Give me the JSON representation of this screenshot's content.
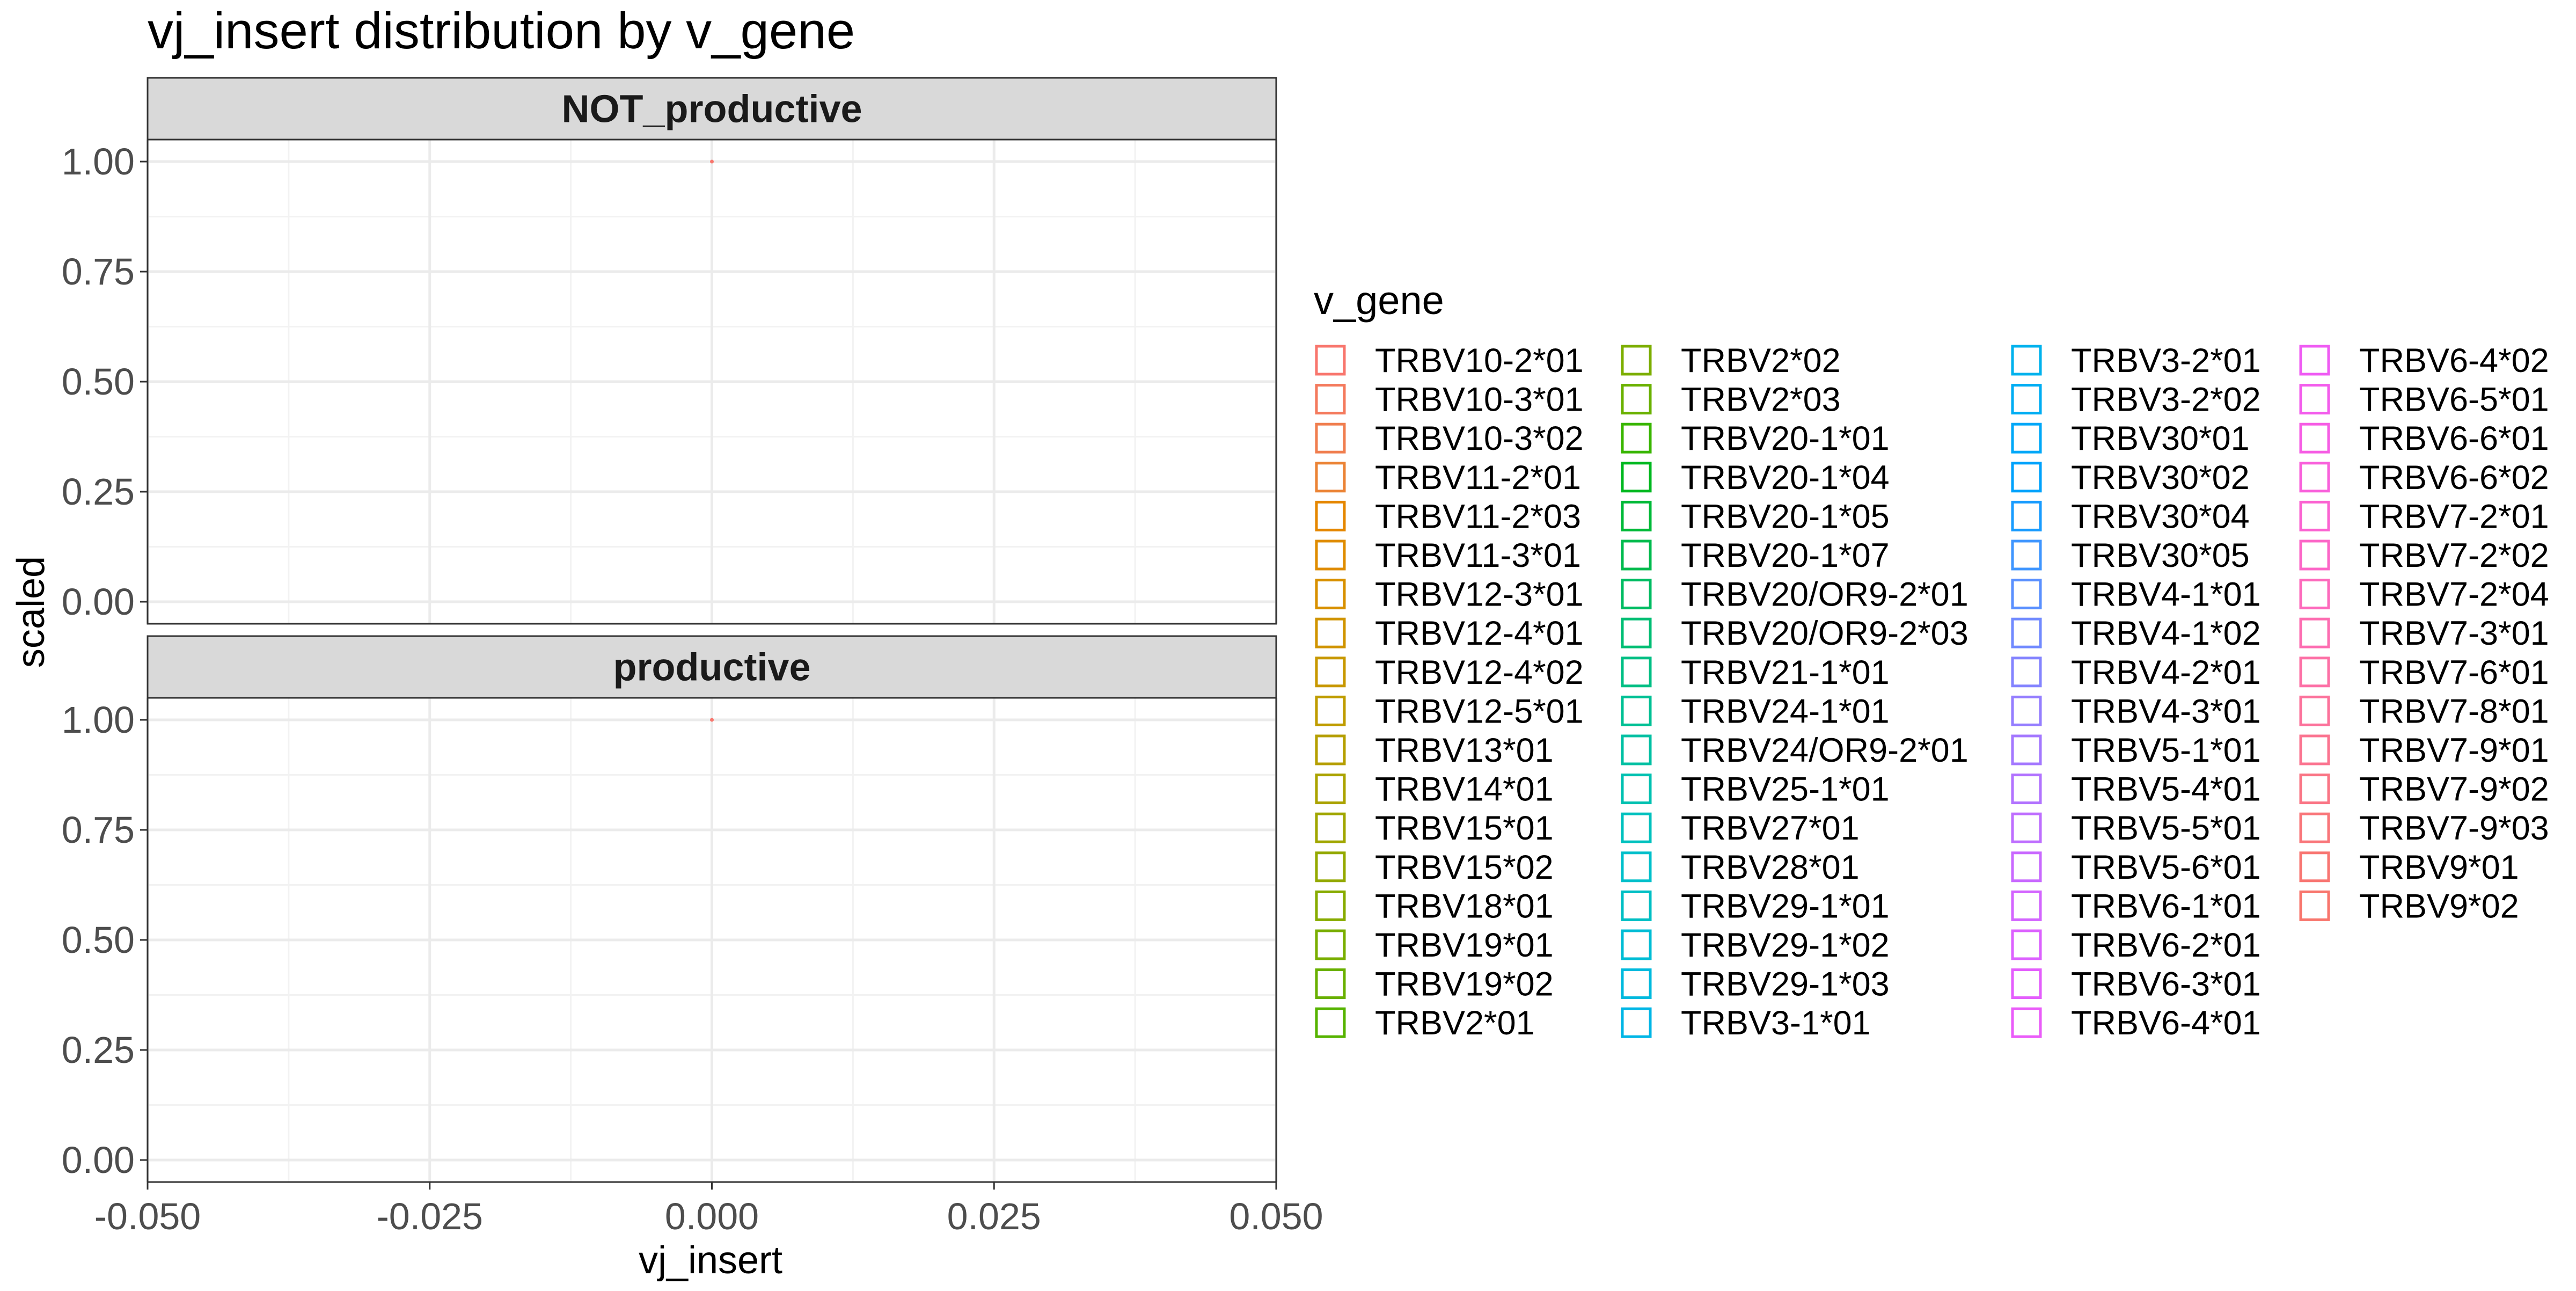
{
  "chart_data": {
    "type": "density",
    "title": "vj_insert distribution by v_gene",
    "xlabel": "vj_insert",
    "ylabel": "scaled",
    "xlim": [
      -0.05,
      0.05
    ],
    "ylim": [
      0,
      1
    ],
    "x_ticks": [
      "-0.050",
      "-0.025",
      "0.000",
      "0.025",
      "0.050"
    ],
    "x_tick_values": [
      -0.05,
      -0.025,
      0.0,
      0.025,
      0.05
    ],
    "y_ticks": [
      "0.00",
      "0.25",
      "0.50",
      "0.75",
      "1.00"
    ],
    "y_tick_values": [
      0,
      0.25,
      0.5,
      0.75,
      1.0
    ],
    "grid": true,
    "legend_position": "right",
    "legend_title": "v_gene",
    "legend_columns": 4,
    "facets": [
      {
        "label": "NOT_productive",
        "marks": [
          {
            "x": 0.0,
            "y": 1.0,
            "color": "#F8766D"
          }
        ]
      },
      {
        "label": "productive",
        "marks": [
          {
            "x": 0.0,
            "y": 1.0,
            "color": "#F8766D"
          }
        ]
      }
    ],
    "legend": [
      {
        "label": "TRBV10-2*01",
        "color": "#F8766D"
      },
      {
        "label": "TRBV10-3*01",
        "color": "#F47A5D"
      },
      {
        "label": "TRBV10-3*02",
        "color": "#F07E4F"
      },
      {
        "label": "TRBV11-2*01",
        "color": "#EB8335"
      },
      {
        "label": "TRBV11-2*03",
        "color": "#E58700"
      },
      {
        "label": "TRBV11-3*01",
        "color": "#DF8C00"
      },
      {
        "label": "TRBV12-3*01",
        "color": "#D89000"
      },
      {
        "label": "TRBV12-4*01",
        "color": "#D09400"
      },
      {
        "label": "TRBV12-4*02",
        "color": "#C89800"
      },
      {
        "label": "TRBV12-5*01",
        "color": "#BF9C00"
      },
      {
        "label": "TRBV13*01",
        "color": "#B59F00"
      },
      {
        "label": "TRBV14*01",
        "color": "#ABA300"
      },
      {
        "label": "TRBV15*01",
        "color": "#A0A600"
      },
      {
        "label": "TRBV15*02",
        "color": "#94A900"
      },
      {
        "label": "TRBV18*01",
        "color": "#87AB00"
      },
      {
        "label": "TRBV19*01",
        "color": "#79AE00"
      },
      {
        "label": "TRBV19*02",
        "color": "#69B000"
      },
      {
        "label": "TRBV2*01",
        "color": "#56B300"
      },
      {
        "label": "TRBV2*02",
        "color": "#7CAE00"
      },
      {
        "label": "TRBV2*03",
        "color": "#6AB100"
      },
      {
        "label": "TRBV20-1*01",
        "color": "#39B600"
      },
      {
        "label": "TRBV20-1*04",
        "color": "#00B81F"
      },
      {
        "label": "TRBV20-1*05",
        "color": "#00BA38"
      },
      {
        "label": "TRBV20-1*07",
        "color": "#00BB4E"
      },
      {
        "label": "TRBV20/OR9-2*01",
        "color": "#00BC62"
      },
      {
        "label": "TRBV20/OR9-2*03",
        "color": "#00BE74"
      },
      {
        "label": "TRBV21-1*01",
        "color": "#00BF84"
      },
      {
        "label": "TRBV24-1*01",
        "color": "#00C094"
      },
      {
        "label": "TRBV24/OR9-2*01",
        "color": "#00C0A3"
      },
      {
        "label": "TRBV25-1*01",
        "color": "#00C1B1"
      },
      {
        "label": "TRBV27*01",
        "color": "#00C1BE"
      },
      {
        "label": "TRBV28*01",
        "color": "#00C0CB"
      },
      {
        "label": "TRBV29-1*01",
        "color": "#00BFC4"
      },
      {
        "label": "TRBV29-1*02",
        "color": "#00BDD5"
      },
      {
        "label": "TRBV29-1*03",
        "color": "#00BADE"
      },
      {
        "label": "TRBV3-1*01",
        "color": "#00B6E6"
      },
      {
        "label": "TRBV3-2*01",
        "color": "#00B2ED"
      },
      {
        "label": "TRBV3-2*02",
        "color": "#00ADF3"
      },
      {
        "label": "TRBV30*01",
        "color": "#00A8F8"
      },
      {
        "label": "TRBV30*02",
        "color": "#00A2FC"
      },
      {
        "label": "TRBV30*04",
        "color": "#199CFF"
      },
      {
        "label": "TRBV30*05",
        "color": "#3F96FF"
      },
      {
        "label": "TRBV4-1*01",
        "color": "#5A90FF"
      },
      {
        "label": "TRBV4-1*02",
        "color": "#718AFF"
      },
      {
        "label": "TRBV4-2*01",
        "color": "#8484FF"
      },
      {
        "label": "TRBV4-3*01",
        "color": "#957EFF"
      },
      {
        "label": "TRBV5-1*01",
        "color": "#A478FF"
      },
      {
        "label": "TRBV5-4*01",
        "color": "#B273FF"
      },
      {
        "label": "TRBV5-5*01",
        "color": "#BE6EFF"
      },
      {
        "label": "TRBV5-6*01",
        "color": "#C969FF"
      },
      {
        "label": "TRBV6-1*01",
        "color": "#D365FF"
      },
      {
        "label": "TRBV6-2*01",
        "color": "#DC61FF"
      },
      {
        "label": "TRBV6-3*01",
        "color": "#E45EFD"
      },
      {
        "label": "TRBV6-4*01",
        "color": "#EA5CF9"
      },
      {
        "label": "TRBV6-4*02",
        "color": "#EF5BF3"
      },
      {
        "label": "TRBV6-5*01",
        "color": "#F35CEC"
      },
      {
        "label": "TRBV6-6*01",
        "color": "#F65DE4"
      },
      {
        "label": "TRBV6-6*02",
        "color": "#F960DB"
      },
      {
        "label": "TRBV7-2*01",
        "color": "#FB63D1"
      },
      {
        "label": "TRBV7-2*02",
        "color": "#FC66C7"
      },
      {
        "label": "TRBV7-2*04",
        "color": "#FD6ABC"
      },
      {
        "label": "TRBV7-3*01",
        "color": "#FD6DB1"
      },
      {
        "label": "TRBV7-6*01",
        "color": "#FD70A6"
      },
      {
        "label": "TRBV7-8*01",
        "color": "#FC729B"
      },
      {
        "label": "TRBV7-9*01",
        "color": "#FB7490"
      },
      {
        "label": "TRBV7-9*02",
        "color": "#FA7585"
      },
      {
        "label": "TRBV7-9*03",
        "color": "#F9767A"
      },
      {
        "label": "TRBV9*01",
        "color": "#F87672"
      },
      {
        "label": "TRBV9*02",
        "color": "#F8766D"
      }
    ]
  }
}
